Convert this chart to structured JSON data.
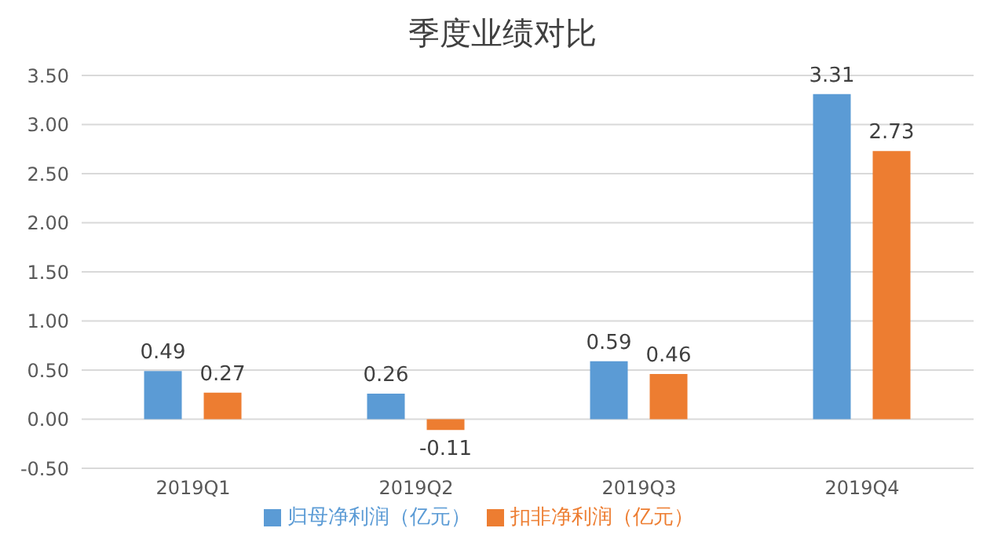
{
  "chart_data": {
    "type": "bar",
    "title": "季度业绩对比",
    "categories": [
      "2019Q1",
      "2019Q2",
      "2019Q3",
      "2019Q4"
    ],
    "series": [
      {
        "name": "归母净利润（亿元）",
        "color": "#5b9bd5",
        "values": [
          0.49,
          0.26,
          0.59,
          3.31
        ]
      },
      {
        "name": "扣非净利润（亿元）",
        "color": "#ed7d31",
        "values": [
          0.27,
          -0.11,
          0.46,
          2.73
        ]
      }
    ],
    "ylim": [
      -0.5,
      3.5
    ],
    "yticks": [
      {
        "value": -0.5,
        "label": "-0.50"
      },
      {
        "value": 0,
        "label": "0.00"
      },
      {
        "value": 0.5,
        "label": "0.50"
      },
      {
        "value": 1,
        "label": "1.00"
      },
      {
        "value": 1.5,
        "label": "1.50"
      },
      {
        "value": 2,
        "label": "2.00"
      },
      {
        "value": 2.5,
        "label": "2.50"
      },
      {
        "value": 3,
        "label": "3.00"
      },
      {
        "value": 3.5,
        "label": "3.50"
      }
    ],
    "grid": "y",
    "legend": "bottom",
    "data_labels": true
  }
}
